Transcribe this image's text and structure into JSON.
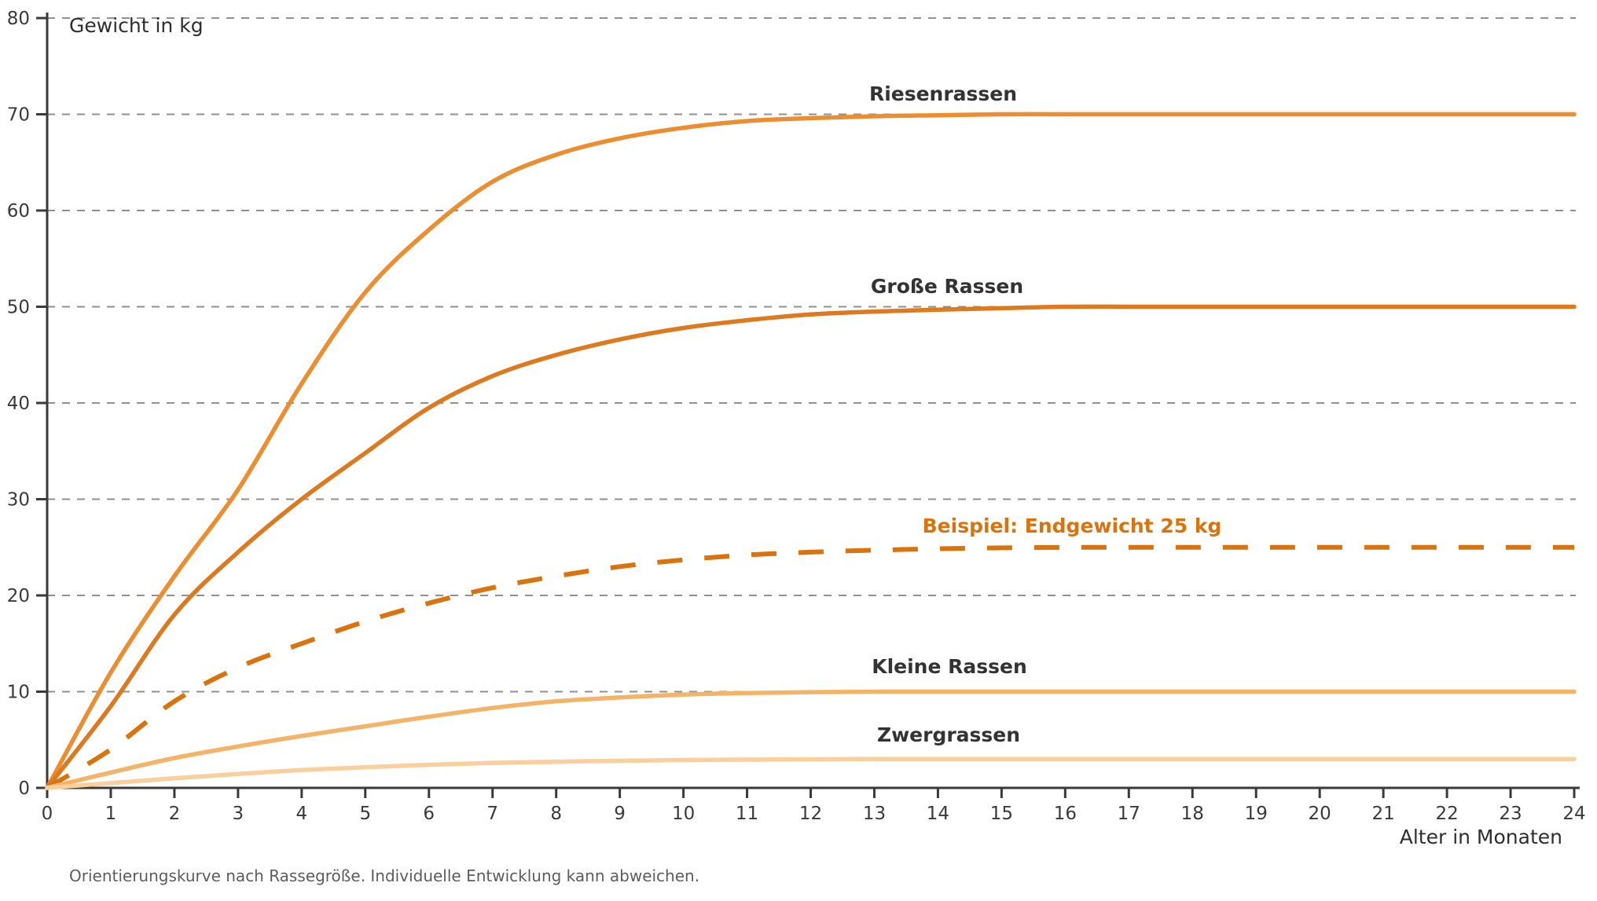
{
  "page": {
    "background": "#ffffff"
  },
  "colors": {
    "axis": "#3a3a3a",
    "grid": "#909090",
    "tick_label": "#3a3a3a",
    "title_text": "#2e2e2e",
    "footnote_text": "#5c5c5c",
    "accent_orange": "#d9730d"
  },
  "chart_data": {
    "type": "line",
    "title": "Gewicht in kg",
    "xlabel": "Alter in Monaten",
    "footnote": "Orientierungskurve nach Rassegröße. Individuelle Entwicklung kann abweichen.",
    "xlim": [
      0,
      24
    ],
    "ylim": [
      0,
      80
    ],
    "x_ticks": [
      0,
      1,
      2,
      3,
      4,
      5,
      6,
      7,
      8,
      9,
      10,
      11,
      12,
      13,
      14,
      15,
      16,
      17,
      18,
      19,
      20,
      21,
      22,
      23,
      24
    ],
    "y_ticks": [
      0,
      10,
      20,
      30,
      40,
      50,
      60,
      70,
      80
    ],
    "grid": "horizontal-dashed",
    "legend_position": "inline-labels",
    "x": [
      0,
      1,
      2,
      3,
      4,
      5,
      6,
      7,
      8,
      9,
      10,
      11,
      12,
      13,
      14,
      15,
      16,
      17,
      18,
      19,
      20,
      21,
      22,
      23,
      24
    ],
    "series": [
      {
        "name": "Riesenrassen",
        "label": "Riesenrassen",
        "final_weight_kg": 70,
        "style": "solid",
        "color": "#EC8D2F",
        "label_color": "#333333",
        "values": [
          0,
          12,
          22,
          31,
          42,
          51.5,
          58,
          63,
          65.8,
          67.5,
          68.6,
          69.3,
          69.6,
          69.8,
          69.9,
          70,
          70,
          70,
          70,
          70,
          70,
          70,
          70,
          70,
          70
        ]
      },
      {
        "name": "Große Rassen",
        "label": "Große Rassen",
        "final_weight_kg": 50,
        "style": "solid",
        "color": "#DD7A1F",
        "label_color": "#333333",
        "values": [
          0,
          8.5,
          18,
          24.5,
          30,
          34.8,
          39.5,
          42.8,
          45,
          46.6,
          47.8,
          48.6,
          49.2,
          49.5,
          49.7,
          49.85,
          50,
          50,
          50,
          50,
          50,
          50,
          50,
          50,
          50
        ]
      },
      {
        "name": "Beispiel: Endgewicht 25 kg",
        "label": "Beispiel: Endgewicht 25 kg",
        "final_weight_kg": 25,
        "style": "dashed",
        "color": "#D9730D",
        "label_color": "#D9730D",
        "values": [
          0,
          4,
          9,
          12.5,
          15,
          17.3,
          19.2,
          20.8,
          22,
          23,
          23.7,
          24.2,
          24.5,
          24.7,
          24.85,
          24.95,
          25,
          25,
          25,
          25,
          25,
          25,
          25,
          25,
          25
        ]
      },
      {
        "name": "Kleine Rassen",
        "label": "Kleine Rassen",
        "final_weight_kg": 10,
        "style": "solid",
        "color": "#F3B469",
        "label_color": "#333333",
        "values": [
          0,
          1.6,
          3.1,
          4.3,
          5.4,
          6.4,
          7.4,
          8.3,
          9,
          9.4,
          9.7,
          9.85,
          9.95,
          10,
          10,
          10,
          10,
          10,
          10,
          10,
          10,
          10,
          10,
          10,
          10
        ]
      },
      {
        "name": "Zwergrassen",
        "label": "Zwergrassen",
        "final_weight_kg": 3,
        "style": "solid",
        "color": "#F8CF9D",
        "label_color": "#333333",
        "values": [
          0,
          0.5,
          1,
          1.45,
          1.85,
          2.15,
          2.4,
          2.6,
          2.72,
          2.82,
          2.9,
          2.94,
          2.97,
          3,
          3,
          3,
          3,
          3,
          3,
          3,
          3,
          3,
          3,
          3,
          3
        ]
      }
    ]
  }
}
